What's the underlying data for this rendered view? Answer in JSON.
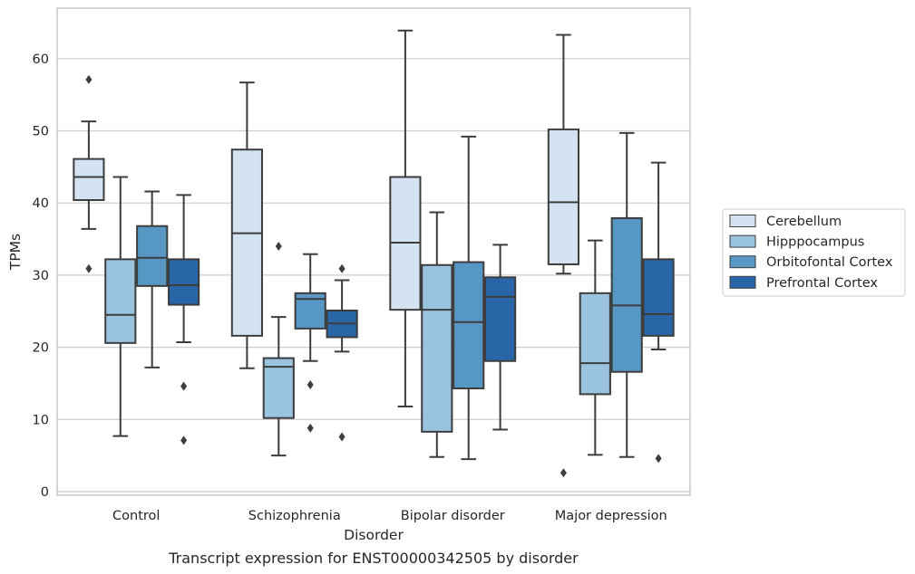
{
  "chart_data": {
    "type": "box",
    "xlabel": "Disorder",
    "ylabel": "TPMs",
    "caption": "Transcript expression for ENST00000342505 by disorder",
    "ylim": [
      -0.5,
      67
    ],
    "yticks": [
      0,
      10,
      20,
      30,
      40,
      50,
      60
    ],
    "grid": true,
    "legend_position": "right",
    "categories": [
      "Control",
      "Schizophrenia",
      "Bipolar disorder",
      "Major depression"
    ],
    "series": [
      {
        "name": "Cerebellum",
        "color": "#d4e3f2",
        "boxes": [
          {
            "whisker_low": 36.4,
            "q1": 40.4,
            "median": 43.6,
            "q3": 46.1,
            "whisker_high": 51.3,
            "outliers": [
              57.1,
              30.9
            ]
          },
          {
            "whisker_low": 17.1,
            "q1": 21.6,
            "median": 35.8,
            "q3": 47.4,
            "whisker_high": 56.7,
            "outliers": []
          },
          {
            "whisker_low": 11.8,
            "q1": 25.2,
            "median": 34.5,
            "q3": 43.6,
            "whisker_high": 63.9,
            "outliers": []
          },
          {
            "whisker_low": 30.2,
            "q1": 31.5,
            "median": 40.1,
            "q3": 50.2,
            "whisker_high": 63.3,
            "outliers": [
              2.6
            ]
          }
        ]
      },
      {
        "name": "Hipppocampus",
        "color": "#99c3df",
        "boxes": [
          {
            "whisker_low": 7.7,
            "q1": 20.6,
            "median": 24.5,
            "q3": 32.2,
            "whisker_high": 43.6,
            "outliers": []
          },
          {
            "whisker_low": 5.0,
            "q1": 10.2,
            "median": 17.3,
            "q3": 18.5,
            "whisker_high": 24.2,
            "outliers": [
              34.0
            ]
          },
          {
            "whisker_low": 4.8,
            "q1": 8.3,
            "median": 25.2,
            "q3": 31.4,
            "whisker_high": 38.7,
            "outliers": []
          },
          {
            "whisker_low": 5.1,
            "q1": 13.5,
            "median": 17.8,
            "q3": 27.5,
            "whisker_high": 34.8,
            "outliers": []
          }
        ]
      },
      {
        "name": "Orbitofontal Cortex",
        "color": "#5797c4",
        "boxes": [
          {
            "whisker_low": 17.2,
            "q1": 28.5,
            "median": 32.4,
            "q3": 36.8,
            "whisker_high": 41.6,
            "outliers": []
          },
          {
            "whisker_low": 18.1,
            "q1": 22.6,
            "median": 26.7,
            "q3": 27.5,
            "whisker_high": 32.9,
            "outliers": [
              14.8,
              8.8
            ]
          },
          {
            "whisker_low": 4.5,
            "q1": 14.3,
            "median": 23.5,
            "q3": 31.8,
            "whisker_high": 49.2,
            "outliers": []
          },
          {
            "whisker_low": 4.8,
            "q1": 16.6,
            "median": 25.8,
            "q3": 37.9,
            "whisker_high": 49.7,
            "outliers": []
          }
        ]
      },
      {
        "name": "Prefrontal Cortex",
        "color": "#2966a8",
        "boxes": [
          {
            "whisker_low": 20.7,
            "q1": 25.9,
            "median": 28.6,
            "q3": 32.2,
            "whisker_high": 41.1,
            "outliers": [
              14.6,
              7.1
            ]
          },
          {
            "whisker_low": 19.4,
            "q1": 21.4,
            "median": 23.3,
            "q3": 25.1,
            "whisker_high": 29.3,
            "outliers": [
              30.9,
              7.6
            ]
          },
          {
            "whisker_low": 8.6,
            "q1": 18.1,
            "median": 27.0,
            "q3": 29.7,
            "whisker_high": 34.2,
            "outliers": []
          },
          {
            "whisker_low": 19.7,
            "q1": 21.6,
            "median": 24.6,
            "q3": 32.2,
            "whisker_high": 45.6,
            "outliers": [
              4.6
            ]
          }
        ]
      }
    ]
  }
}
